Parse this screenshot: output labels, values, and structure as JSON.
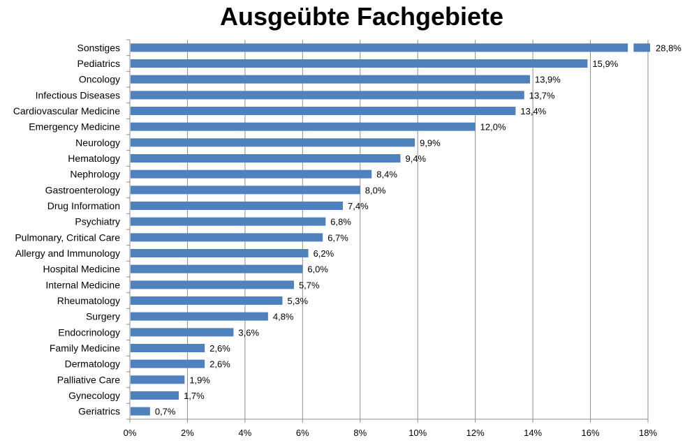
{
  "chart_data": {
    "type": "bar",
    "orientation": "horizontal",
    "title": "Ausgeübte Fachgebiete",
    "xlabel": "",
    "ylabel": "",
    "xlim": [
      0,
      18
    ],
    "x_ticks": [
      "0%",
      "2%",
      "4%",
      "6%",
      "8%",
      "10%",
      "12%",
      "14%",
      "16%",
      "18%"
    ],
    "grid": true,
    "legend": "none",
    "axis_break_on": "Sonstiges",
    "bar_color": "#4F81BD",
    "categories": [
      "Sonstiges",
      "Pediatrics",
      "Oncology",
      "Infectious Diseases",
      "Cardiovascular Medicine",
      "Emergency Medicine",
      "Neurology",
      "Hematology",
      "Nephrology",
      "Gastroenterology",
      "Drug Information",
      "Psychiatry",
      "Pulmonary, Critical Care",
      "Allergy and Immunology",
      "Hospital Medicine",
      "Internal Medicine",
      "Rheumatology",
      "Surgery",
      "Endocrinology",
      "Family Medicine",
      "Dermatology",
      "Palliative Care",
      "Gynecology",
      "Geriatrics"
    ],
    "values": [
      28.8,
      15.9,
      13.9,
      13.7,
      13.4,
      12.0,
      9.9,
      9.4,
      8.4,
      8.0,
      7.4,
      6.8,
      6.7,
      6.2,
      6.0,
      5.7,
      5.3,
      4.8,
      3.6,
      2.6,
      2.6,
      1.9,
      1.7,
      0.7
    ],
    "value_labels": [
      "28,8%",
      "15,9%",
      "13,9%",
      "13,7%",
      "13,4%",
      "12,0%",
      "9,9%",
      "9,4%",
      "8,4%",
      "8,0%",
      "7,4%",
      "6,8%",
      "6,7%",
      "6,2%",
      "6,0%",
      "5,7%",
      "5,3%",
      "4,8%",
      "3,6%",
      "2,6%",
      "2,6%",
      "1,9%",
      "1,7%",
      "0,7%"
    ]
  }
}
